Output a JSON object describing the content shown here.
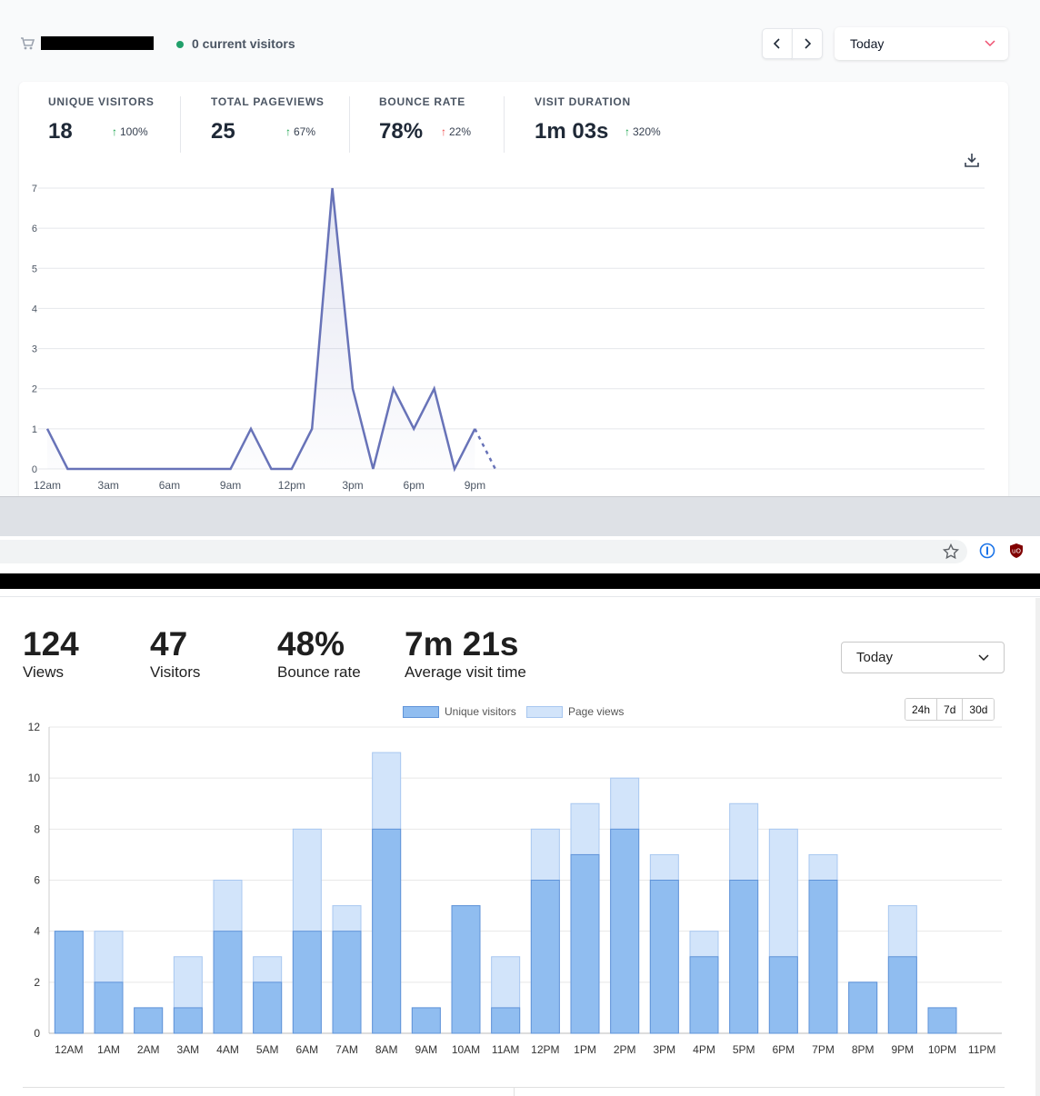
{
  "top_dashboard": {
    "current_visitors": "0 current visitors",
    "period": "Today",
    "stats": [
      {
        "label": "UNIQUE VISITORS",
        "value": "18",
        "change": "100%",
        "direction": "up-good"
      },
      {
        "label": "TOTAL PAGEVIEWS",
        "value": "25",
        "change": "67%",
        "direction": "up-good"
      },
      {
        "label": "BOUNCE RATE",
        "value": "78%",
        "change": "22%",
        "direction": "up-bad"
      },
      {
        "label": "VISIT DURATION",
        "value": "1m 03s",
        "change": "320%",
        "direction": "up-good"
      }
    ],
    "colors": {
      "line": "#6873b8",
      "live_dot": "#22a06b",
      "change_good": "#16a34a",
      "change_bad": "#ef4444"
    }
  },
  "bottom_dashboard": {
    "metrics": [
      {
        "value": "124",
        "label": "Views"
      },
      {
        "value": "47",
        "label": "Visitors"
      },
      {
        "value": "48%",
        "label": "Bounce rate"
      },
      {
        "value": "7m 21s",
        "label": "Average visit time"
      }
    ],
    "period": "Today",
    "ranges": [
      "24h",
      "7d",
      "30d"
    ],
    "colors": {
      "unique": "#90bdf0",
      "unique_border": "#5f93d8",
      "pageviews": "#d2e4fa",
      "pageviews_border": "#a8c7f0"
    }
  },
  "chart_data": [
    {
      "type": "line",
      "x": [
        "12am",
        "1am",
        "2am",
        "3am",
        "4am",
        "5am",
        "6am",
        "7am",
        "8am",
        "9am",
        "10am",
        "11am",
        "12pm",
        "1pm",
        "2pm",
        "3pm",
        "4pm",
        "5pm",
        "6pm",
        "7pm",
        "8pm",
        "9pm",
        "10pm"
      ],
      "values": [
        1,
        0,
        0,
        0,
        0,
        0,
        0,
        0,
        0,
        0,
        1,
        0,
        0,
        1,
        7,
        2,
        0,
        2,
        1,
        2,
        0,
        1,
        0
      ],
      "xticks": [
        "12am",
        "3am",
        "6am",
        "9am",
        "12pm",
        "3pm",
        "6pm",
        "9pm"
      ],
      "yticks": [
        0,
        1,
        2,
        3,
        4,
        5,
        6,
        7
      ],
      "ylim": [
        0,
        7
      ],
      "last_segment_dashed": true,
      "grid": true
    },
    {
      "type": "bar",
      "categories": [
        "12AM",
        "1AM",
        "2AM",
        "3AM",
        "4AM",
        "5AM",
        "6AM",
        "7AM",
        "8AM",
        "9AM",
        "10AM",
        "11AM",
        "12PM",
        "1PM",
        "2PM",
        "3PM",
        "4PM",
        "5PM",
        "6PM",
        "7PM",
        "8PM",
        "9PM",
        "10PM",
        "11PM"
      ],
      "series": [
        {
          "name": "Unique visitors",
          "values": [
            4,
            2,
            1,
            1,
            4,
            2,
            4,
            4,
            8,
            1,
            5,
            1,
            6,
            7,
            8,
            6,
            3,
            6,
            3,
            6,
            2,
            3,
            1,
            0
          ]
        },
        {
          "name": "Page views",
          "values": [
            4,
            4,
            1,
            3,
            6,
            3,
            8,
            5,
            11,
            1,
            5,
            3,
            8,
            9,
            10,
            7,
            4,
            9,
            8,
            7,
            2,
            5,
            1,
            0
          ]
        }
      ],
      "yticks": [
        0,
        2,
        4,
        6,
        8,
        10,
        12
      ],
      "ylim": [
        0,
        12
      ],
      "legend": "top-center",
      "grid": true
    }
  ]
}
